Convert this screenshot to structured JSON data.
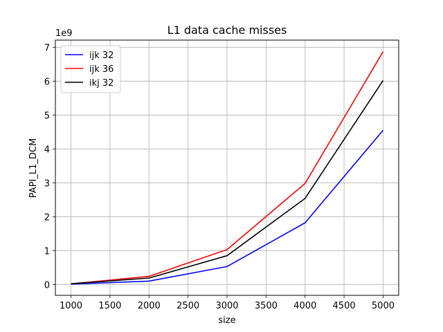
{
  "chart_data": {
    "type": "line",
    "title": "L1 data cache misses",
    "xlabel": "size",
    "ylabel": "PAPI_L1_DCM",
    "y_offset_text": "1e9",
    "x": [
      1000,
      2000,
      3000,
      4000,
      5000
    ],
    "xlim": [
      800,
      5200
    ],
    "ylim": [
      -0.32,
      7.21
    ],
    "x_ticks": [
      1000,
      1500,
      2000,
      2500,
      3000,
      3500,
      4000,
      4500,
      5000
    ],
    "y_ticks": [
      0,
      1,
      2,
      3,
      4,
      5,
      6,
      7
    ],
    "grid": true,
    "legend_position": "top-left",
    "series": [
      {
        "name": "ijk 32",
        "color": "#0000ff",
        "values": [
          0.01,
          0.1,
          0.53,
          1.82,
          4.55
        ]
      },
      {
        "name": "ijk 36",
        "color": "#ff0000",
        "values": [
          0.02,
          0.24,
          1.03,
          2.98,
          6.87
        ]
      },
      {
        "name": "ikj 32",
        "color": "#000000",
        "values": [
          0.02,
          0.19,
          0.85,
          2.54,
          6.02
        ]
      }
    ]
  }
}
